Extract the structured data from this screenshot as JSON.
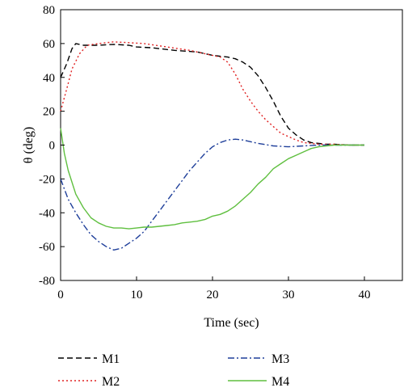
{
  "chart_data": {
    "type": "line",
    "xlabel": "Time (sec)",
    "ylabel": "θ (deg)",
    "xlim": [
      0,
      45
    ],
    "ylim": [
      -80,
      80
    ],
    "xticks": [
      0,
      10,
      20,
      30,
      40
    ],
    "yticks": [
      -80,
      -60,
      -40,
      -20,
      0,
      20,
      40,
      60,
      80
    ],
    "grid": false,
    "legend_position": "bottom",
    "series": [
      {
        "name": "M1",
        "color": "#000000",
        "dash": "dashed",
        "x": [
          0,
          0.8,
          1.5,
          2,
          3,
          5,
          7,
          9,
          10,
          12,
          15,
          18,
          20,
          22,
          23,
          24,
          25,
          26,
          27,
          28,
          29,
          30,
          31,
          32,
          33,
          34,
          35,
          36,
          38,
          40
        ],
        "y": [
          40,
          48,
          57,
          60,
          59,
          59,
          59.5,
          59,
          58,
          57.5,
          56,
          55,
          53,
          52,
          51,
          49,
          46,
          41,
          34,
          26,
          17,
          10,
          6,
          3,
          1.5,
          1,
          0.5,
          0.5,
          0,
          0
        ]
      },
      {
        "name": "M2",
        "color": "#e02020",
        "dash": "dotted",
        "x": [
          0,
          0.8,
          1.5,
          2.5,
          3.5,
          5,
          7,
          9,
          11,
          14,
          17,
          20,
          21,
          22,
          23,
          24,
          25,
          26,
          27,
          28,
          29,
          30,
          31,
          32,
          33,
          34,
          36,
          38,
          40
        ],
        "y": [
          20,
          33,
          45,
          54,
          59,
          60,
          61,
          60.5,
          60,
          58,
          56,
          53,
          52,
          49,
          42,
          33,
          26,
          20,
          15,
          11,
          7,
          5,
          3,
          1.5,
          1,
          0.5,
          0.5,
          0,
          0
        ]
      },
      {
        "name": "M3",
        "color": "#1f3f9a",
        "dash": "dashdot",
        "x": [
          0,
          1,
          2,
          3,
          4,
          5,
          6,
          7,
          8,
          9,
          10,
          11,
          12,
          13,
          14,
          15,
          16,
          17,
          18,
          19,
          20,
          21,
          22,
          23,
          24,
          25,
          26,
          28,
          30,
          32,
          34,
          36,
          38,
          40
        ],
        "y": [
          -20,
          -32,
          -40,
          -47,
          -53,
          -57,
          -60,
          -62,
          -61,
          -58,
          -55,
          -51,
          -45,
          -39,
          -33,
          -27,
          -21,
          -15,
          -10,
          -5,
          -1,
          1.5,
          3,
          3.5,
          3,
          2,
          1,
          -0.5,
          -1,
          -0.5,
          0,
          0,
          0,
          0
        ]
      },
      {
        "name": "M4",
        "color": "#5fbf3f",
        "dash": "solid",
        "x": [
          0,
          0.5,
          1,
          2,
          3,
          4,
          5,
          6,
          7,
          8,
          9,
          10,
          11,
          12,
          13,
          14,
          15,
          16,
          17,
          18,
          19,
          20,
          21,
          22,
          23,
          24,
          25,
          26,
          27,
          28,
          29,
          30,
          31,
          32,
          33,
          34,
          35,
          36,
          38,
          40
        ],
        "y": [
          10,
          -5,
          -15,
          -29,
          -37,
          -43,
          -46,
          -48,
          -49,
          -49,
          -49.5,
          -49,
          -48.5,
          -48.5,
          -48,
          -47.5,
          -47,
          -46,
          -45.5,
          -45,
          -44,
          -42,
          -41,
          -39,
          -36,
          -32,
          -28,
          -23,
          -19,
          -14,
          -11,
          -8,
          -6,
          -4,
          -2,
          -1,
          -0.5,
          0,
          0,
          0
        ]
      }
    ]
  }
}
